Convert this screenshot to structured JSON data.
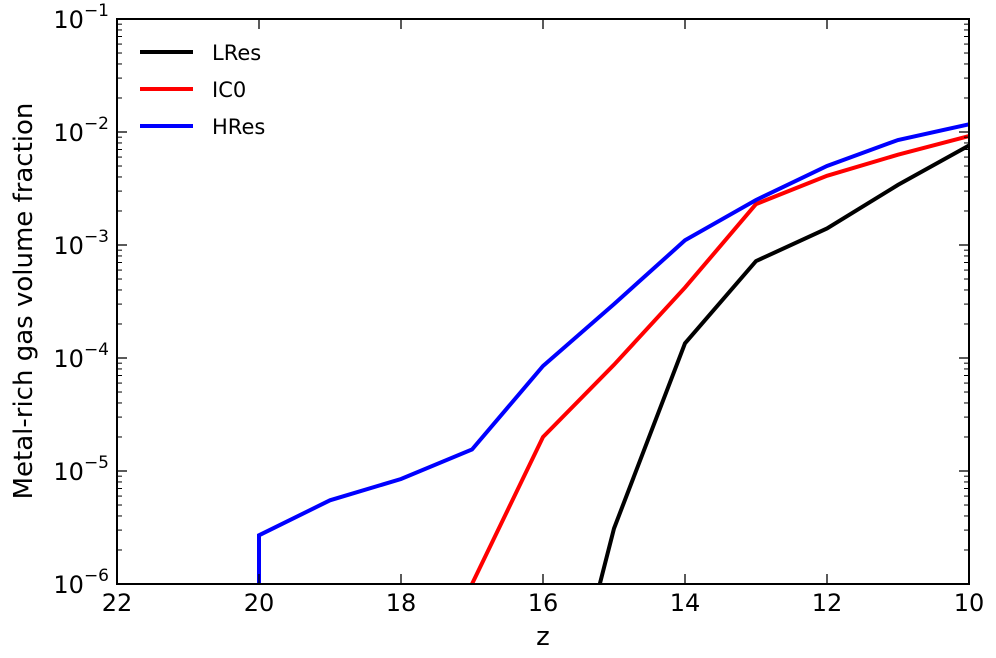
{
  "chart_data": {
    "type": "line",
    "title": "",
    "xlabel": "z",
    "ylabel": "Metal-rich gas volume fraction",
    "x_reversed": true,
    "y_scale": "log",
    "xlim": [
      22,
      10
    ],
    "ylim": [
      1e-06,
      0.1
    ],
    "xticks": [
      22,
      20,
      18,
      16,
      14,
      12,
      10
    ],
    "yticks": [
      {
        "value": 1e-06,
        "base": "10",
        "exp": "−6"
      },
      {
        "value": 1e-05,
        "base": "10",
        "exp": "−5"
      },
      {
        "value": 0.0001,
        "base": "10",
        "exp": "−4"
      },
      {
        "value": 0.001,
        "base": "10",
        "exp": "−3"
      },
      {
        "value": 0.01,
        "base": "10",
        "exp": "−2"
      },
      {
        "value": 0.1,
        "base": "10",
        "exp": "−1"
      }
    ],
    "grid": false,
    "legend_position": "top-left",
    "series": [
      {
        "name": "LRes",
        "color": "#000000",
        "points": [
          [
            15.2,
            1e-06
          ],
          [
            15,
            3.1e-06
          ],
          [
            14,
            0.000135
          ],
          [
            13,
            0.00072
          ],
          [
            12,
            0.0014
          ],
          [
            11,
            0.0034
          ],
          [
            10,
            0.0076
          ]
        ]
      },
      {
        "name": "IC0",
        "color": "#ff0000",
        "points": [
          [
            17,
            1e-06
          ],
          [
            16,
            2e-05
          ],
          [
            15,
            8.7e-05
          ],
          [
            14,
            0.00042
          ],
          [
            13,
            0.0023
          ],
          [
            12,
            0.0041
          ],
          [
            11,
            0.0063
          ],
          [
            10,
            0.0092
          ]
        ]
      },
      {
        "name": "HRes",
        "color": "#0000ff",
        "points": [
          [
            20,
            1e-06
          ],
          [
            20,
            2.7e-06
          ],
          [
            19,
            5.5e-06
          ],
          [
            18,
            8.5e-06
          ],
          [
            17,
            1.55e-05
          ],
          [
            16,
            8.5e-05
          ],
          [
            15,
            0.0003
          ],
          [
            14,
            0.0011
          ],
          [
            13,
            0.0025
          ],
          [
            12,
            0.005
          ],
          [
            11,
            0.0085
          ],
          [
            10,
            0.0117
          ]
        ]
      }
    ]
  }
}
